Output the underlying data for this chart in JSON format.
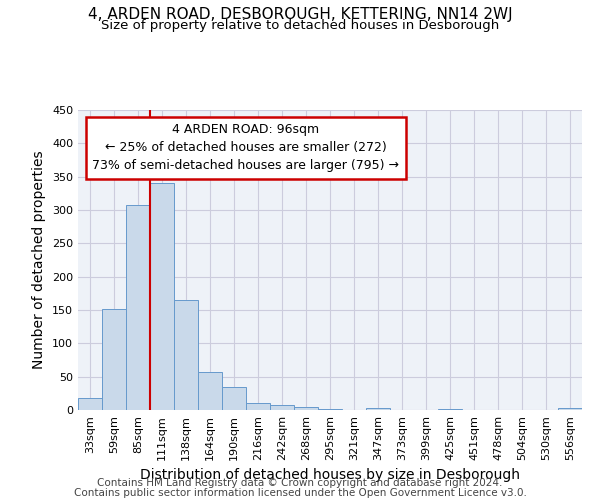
{
  "title": "4, ARDEN ROAD, DESBOROUGH, KETTERING, NN14 2WJ",
  "subtitle": "Size of property relative to detached houses in Desborough",
  "xlabel": "Distribution of detached houses by size in Desborough",
  "ylabel": "Number of detached properties",
  "footnote1": "Contains HM Land Registry data © Crown copyright and database right 2024.",
  "footnote2": "Contains public sector information licensed under the Open Government Licence v3.0.",
  "bin_labels": [
    "33sqm",
    "59sqm",
    "85sqm",
    "111sqm",
    "138sqm",
    "164sqm",
    "190sqm",
    "216sqm",
    "242sqm",
    "268sqm",
    "295sqm",
    "321sqm",
    "347sqm",
    "373sqm",
    "399sqm",
    "425sqm",
    "451sqm",
    "478sqm",
    "504sqm",
    "530sqm",
    "556sqm"
  ],
  "bar_heights": [
    18,
    152,
    307,
    340,
    165,
    57,
    35,
    10,
    7,
    4,
    2,
    0,
    3,
    0,
    0,
    2,
    0,
    0,
    0,
    0,
    3
  ],
  "bar_color": "#c9d9ea",
  "bar_edge_color": "#6699cc",
  "grid_color": "#ccccdd",
  "background_color": "#eef2f8",
  "plot_bg_color": "#eef2f8",
  "property_line_x": 2.5,
  "property_label": "4 ARDEN ROAD: 96sqm",
  "smaller_text": "← 25% of detached houses are smaller (272)",
  "larger_text": "73% of semi-detached houses are larger (795) →",
  "annotation_box_color": "#cc0000",
  "ylim": [
    0,
    450
  ],
  "yticks": [
    0,
    50,
    100,
    150,
    200,
    250,
    300,
    350,
    400,
    450
  ],
  "title_fontsize": 11,
  "subtitle_fontsize": 9.5,
  "axis_label_fontsize": 10,
  "tick_fontsize": 8,
  "annotation_fontsize": 9,
  "footnote_fontsize": 7.5
}
